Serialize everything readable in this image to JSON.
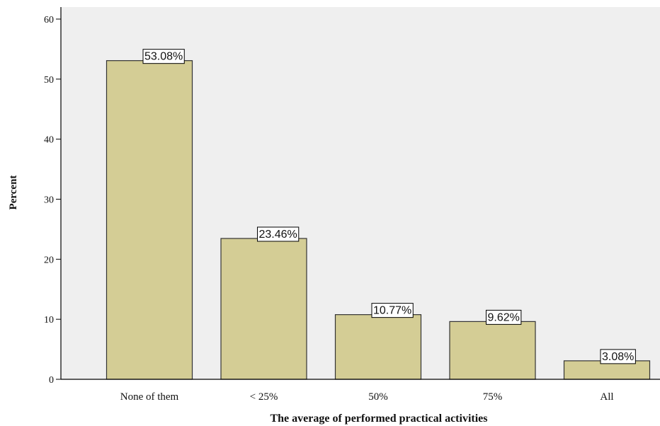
{
  "chart_data": {
    "type": "bar",
    "categories": [
      "None of them",
      "< 25%",
      "50%",
      "75%",
      "All"
    ],
    "values": [
      53.08,
      23.46,
      10.77,
      9.62,
      3.08
    ],
    "data_labels": [
      "53.08%",
      "23.46%",
      "10.77%",
      "9.62%",
      "3.08%"
    ],
    "xlabel": "The average of performed practical activities",
    "ylabel": "Percent",
    "ylim": [
      0,
      62
    ],
    "yticks": [
      0,
      10,
      20,
      30,
      40,
      50,
      60
    ],
    "ytick_labels": [
      "0",
      "10",
      "20",
      "30",
      "40",
      "50",
      "60"
    ],
    "grid": false,
    "colors": {
      "bar_fill": "#d4cd95",
      "bar_stroke": "#333333",
      "plot_background": "#efefef",
      "axis": "#000000"
    }
  }
}
